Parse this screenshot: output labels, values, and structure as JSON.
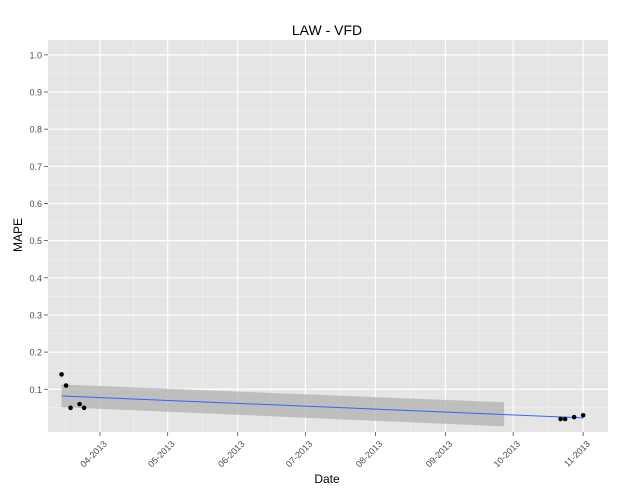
{
  "colors": {
    "panel_bg": "#e5e5e5",
    "grid_major": "#ffffff",
    "grid_minor": "#f2f2f2",
    "point": "#000000",
    "trend_line": "#3366ff",
    "confidence_band": "#b0b0b0",
    "axis_text": "#4d4d4d",
    "title_text": "#000000"
  },
  "chart_data": {
    "type": "scatter",
    "title": "LAW -   VFD",
    "xlabel": "Date",
    "ylabel": "MAPE",
    "x_tick_labels": [
      "04-2013",
      "05-2013",
      "06-2013",
      "07-2013",
      "08-2013",
      "09-2013",
      "10-2013",
      "11-2013"
    ],
    "x_ticks": [
      "2013-04-01",
      "2013-05-01",
      "2013-06-01",
      "2013-07-01",
      "2013-08-01",
      "2013-09-01",
      "2013-10-01",
      "2013-11-01"
    ],
    "y_tick_labels": [
      "0.1",
      "0.2",
      "0.3",
      "0.4",
      "0.5",
      "0.6",
      "0.7",
      "0.8",
      "0.9",
      "1.0"
    ],
    "y_ticks": [
      0.1,
      0.2,
      0.3,
      0.4,
      0.5,
      0.6,
      0.7,
      0.8,
      0.9,
      1.0
    ],
    "xlim": [
      "2013-03-09",
      "2013-11-12"
    ],
    "ylim": [
      -0.015,
      1.04
    ],
    "grid": true,
    "legend": "none",
    "series": [
      {
        "points": [
          {
            "x": "2013-03-15",
            "y": 0.14
          },
          {
            "x": "2013-03-17",
            "y": 0.11
          },
          {
            "x": "2013-03-19",
            "y": 0.05
          },
          {
            "x": "2013-03-23",
            "y": 0.06
          },
          {
            "x": "2013-03-25",
            "y": 0.05
          },
          {
            "x": "2013-10-22",
            "y": 0.02
          },
          {
            "x": "2013-10-24",
            "y": 0.02
          },
          {
            "x": "2013-10-28",
            "y": 0.025
          },
          {
            "x": "2013-11-01",
            "y": 0.03
          }
        ]
      }
    ],
    "trend": {
      "method": "linear",
      "start": {
        "x": "2013-03-15",
        "y": 0.082
      },
      "end": {
        "x": "2013-11-01",
        "y": 0.023
      },
      "band_segments": [
        {
          "x_start": "2013-03-15",
          "x_end": "2013-09-27",
          "lower_start": 0.052,
          "upper_start": 0.113,
          "lower_end": 0.0,
          "upper_end": 0.065
        }
      ]
    }
  }
}
